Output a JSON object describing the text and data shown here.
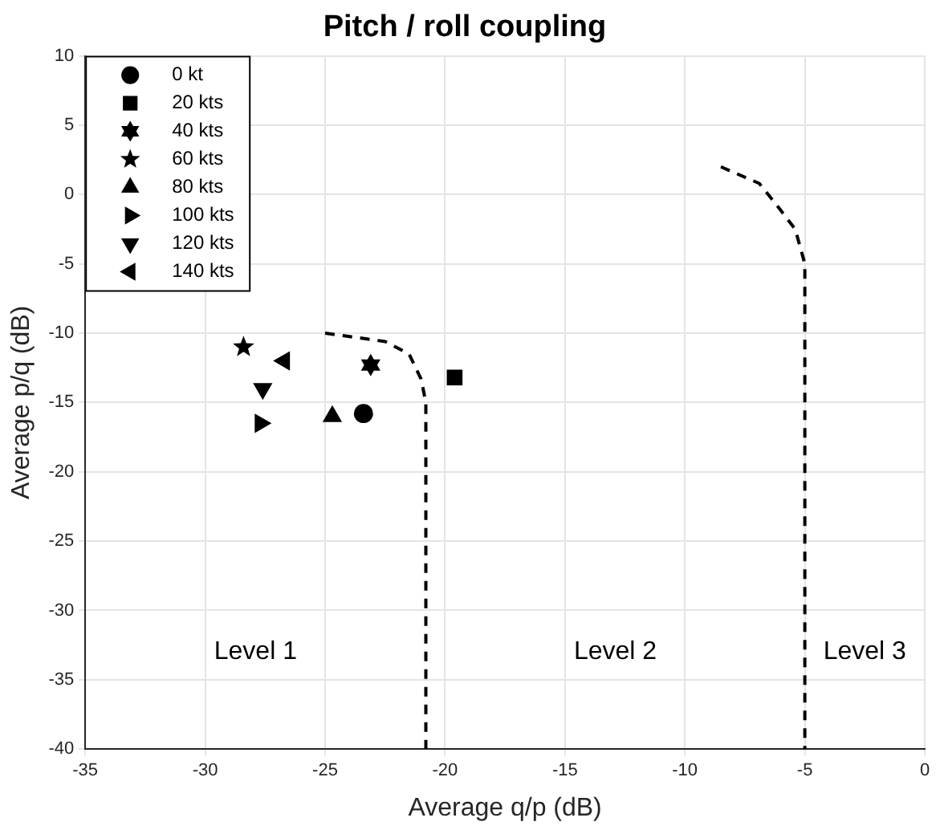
{
  "chart_data": {
    "type": "scatter",
    "title": "Pitch / roll coupling",
    "xlabel": "Average q/p (dB)",
    "ylabel": "Average p/q (dB)",
    "xlim": [
      -35,
      0
    ],
    "ylim": [
      -40,
      10
    ],
    "xticks": [
      -35,
      -30,
      -25,
      -20,
      -15,
      -10,
      -5,
      0
    ],
    "yticks": [
      -40,
      -35,
      -30,
      -25,
      -20,
      -15,
      -10,
      -5,
      0,
      5,
      10
    ],
    "grid": true,
    "legend": "top left",
    "series": [
      {
        "name": "0 kt",
        "color": "#000000",
        "marker": "circle",
        "x": [
          -23.4
        ],
        "values": [
          -15.8
        ]
      },
      {
        "name": "20 kts",
        "color": "#000000",
        "marker": "square",
        "x": [
          -19.6
        ],
        "values": [
          -13.2
        ]
      },
      {
        "name": "40 kts",
        "color": "#000000",
        "x": [
          -23.1
        ],
        "values": [
          -12.3
        ]
      },
      {
        "name": "60 kts",
        "color": "#000000",
        "marker": "star",
        "x": [
          -28.4
        ],
        "values": [
          -11
        ]
      },
      {
        "name": "80 kts",
        "color": "#000000",
        "marker": "triangle",
        "x": [
          -24.7
        ],
        "values": [
          -16
        ]
      },
      {
        "name": "100 kts",
        "color": "#000000",
        "marker": "triangle-right",
        "x": [
          -27.7
        ],
        "values": [
          -16.5
        ]
      },
      {
        "name": "120 kts",
        "color": "#000000",
        "marker": "triangle-down",
        "x": [
          -27.6
        ],
        "values": [
          -14
        ]
      },
      {
        "name": "140 kts",
        "color": "#000000",
        "marker": "triangle-left",
        "x": [
          -26.7
        ],
        "values": [
          -12
        ]
      },
      {
        "type": "line",
        "color": "#000000",
        "marker": "none",
        "line_style": "dashed",
        "x": [
          -25,
          -22.5,
          -21.5,
          -21,
          -20.8,
          -20.8
        ],
        "values": [
          -10,
          -10.6,
          -11.5,
          -13.3,
          -15,
          -40
        ]
      },
      {
        "type": "line",
        "color": "#000000",
        "marker": "none",
        "line_style": "dashed",
        "x": [
          -8.5,
          -6.9,
          -6.2,
          -5.4,
          -5,
          -5
        ],
        "values": [
          2,
          0.8,
          -0.7,
          -2.5,
          -5,
          -40
        ]
      }
    ],
    "annotations": [
      "Level 1",
      "Level 2",
      "Level 3"
    ]
  }
}
